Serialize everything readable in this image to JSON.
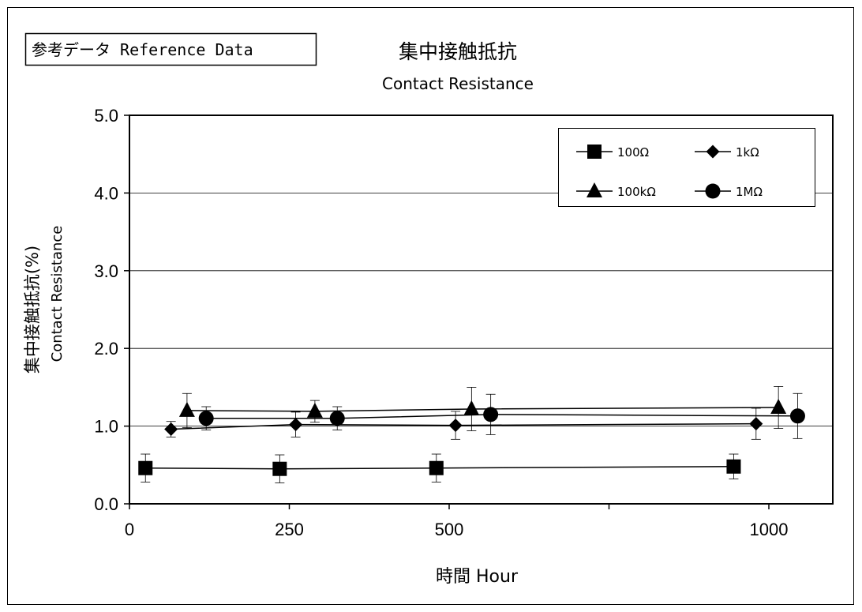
{
  "reference_label": "参考データ Reference Data",
  "chart_data": {
    "type": "line",
    "title": "集中接触抵抗",
    "subtitle": "Contact Resistance",
    "xlabel": "時間 Hour",
    "ylabel": "集中接触抵抗(%)",
    "ylabel_sub": "Contact Resistance",
    "xlim": [
      0,
      1100
    ],
    "ylim": [
      0,
      5
    ],
    "x_ticks": [
      0,
      250,
      500,
      1000
    ],
    "x_tick_labels": [
      "0",
      "250",
      "500",
      "1000"
    ],
    "x_minor_ticks": [
      750
    ],
    "y_ticks": [
      0,
      1,
      2,
      3,
      4,
      5
    ],
    "y_tick_labels": [
      "0.0",
      "1.0",
      "2.0",
      "3.0",
      "4.0",
      "5.0"
    ],
    "grid": "horizontal",
    "legend_position": "top-right",
    "series": [
      {
        "name": "100Ω",
        "marker": "square",
        "x": [
          25,
          235,
          480,
          945
        ],
        "y": [
          0.46,
          0.45,
          0.46,
          0.48
        ],
        "err": [
          0.18,
          0.18,
          0.18,
          0.16
        ]
      },
      {
        "name": "1kΩ",
        "marker": "diamond",
        "x": [
          65,
          260,
          510,
          980
        ],
        "y": [
          0.96,
          1.02,
          1.01,
          1.03
        ],
        "err": [
          0.1,
          0.16,
          0.18,
          0.2
        ]
      },
      {
        "name": "100kΩ",
        "marker": "triangle",
        "x": [
          90,
          290,
          535,
          1015
        ],
        "y": [
          1.2,
          1.19,
          1.22,
          1.24
        ],
        "err": [
          0.22,
          0.14,
          0.28,
          0.27
        ]
      },
      {
        "name": "1MΩ",
        "marker": "circle",
        "x": [
          120,
          325,
          565,
          1045
        ],
        "y": [
          1.1,
          1.1,
          1.15,
          1.13
        ],
        "err": [
          0.15,
          0.15,
          0.26,
          0.29
        ]
      }
    ]
  },
  "colors": {
    "line": "#000000",
    "grid": "#000000",
    "background": "#ffffff"
  }
}
